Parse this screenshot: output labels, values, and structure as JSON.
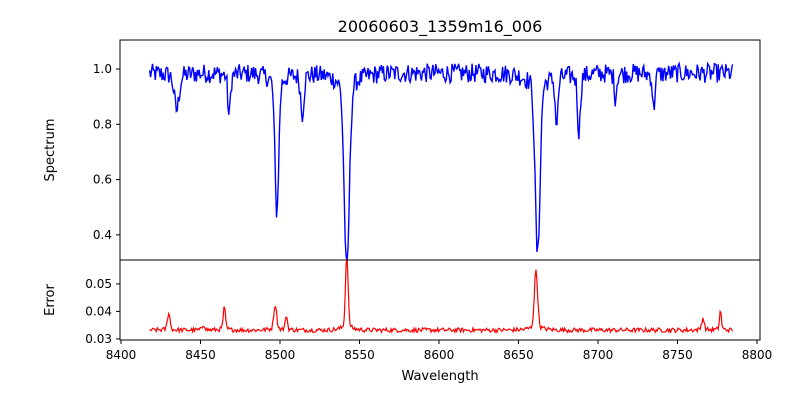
{
  "chart_data": [
    {
      "type": "line",
      "title": "20060603_1359m16_006",
      "ylabel": "Spectrum",
      "xlabel": "",
      "xlim": [
        8400,
        8805
      ],
      "ylim": [
        0.309,
        1.105
      ],
      "yticks": [
        0.4,
        0.6,
        0.8,
        1.0
      ],
      "ytick_labels": [
        "0.4",
        "0.6",
        "0.8",
        "1.0"
      ],
      "color": "#0000ff",
      "x_range": [
        8418,
        8785
      ],
      "step": 0.6,
      "continuum": 0.985,
      "noise_amplitude": 0.035,
      "features": [
        {
          "center": 8435,
          "depth": 0.12,
          "width": 1.5
        },
        {
          "center": 8468,
          "depth": 0.14,
          "width": 0.8
        },
        {
          "center": 8498,
          "depth": 0.45,
          "width": 1.2
        },
        {
          "center": 8514,
          "depth": 0.13,
          "width": 1.0
        },
        {
          "center": 8542,
          "depth": 0.64,
          "width": 1.6
        },
        {
          "center": 8662,
          "depth": 0.59,
          "width": 1.5
        },
        {
          "center": 8674,
          "depth": 0.16,
          "width": 0.9
        },
        {
          "center": 8688,
          "depth": 0.19,
          "width": 0.9
        },
        {
          "center": 8711,
          "depth": 0.08,
          "width": 0.7
        },
        {
          "center": 8735,
          "depth": 0.12,
          "width": 0.7
        }
      ]
    },
    {
      "type": "line",
      "title": "",
      "ylabel": "Error",
      "xlabel": "Wavelength",
      "xlim": [
        8400,
        8805
      ],
      "ylim": [
        0.0296,
        0.0587
      ],
      "yticks": [
        0.03,
        0.04,
        0.05
      ],
      "ytick_labels": [
        "0.03",
        "0.04",
        "0.05"
      ],
      "xticks": [
        8400,
        8450,
        8500,
        8550,
        8600,
        8650,
        8700,
        8750,
        8800
      ],
      "xtick_labels": [
        "8400",
        "8450",
        "8500",
        "8550",
        "8600",
        "8650",
        "8700",
        "8750",
        "8800"
      ],
      "color": "#ff0000",
      "x_range": [
        8418,
        8785
      ],
      "step": 0.6,
      "baseline": 0.0332,
      "noise_amplitude": 0.0008,
      "features": [
        {
          "center": 8430,
          "height": 0.0058,
          "width": 0.8
        },
        {
          "center": 8452,
          "height": 0.0018,
          "width": 0.8
        },
        {
          "center": 8465,
          "height": 0.0075,
          "width": 0.7
        },
        {
          "center": 8497,
          "height": 0.0085,
          "width": 0.9
        },
        {
          "center": 8504,
          "height": 0.005,
          "width": 0.6
        },
        {
          "center": 8542,
          "height": 0.025,
          "width": 0.8
        },
        {
          "center": 8661,
          "height": 0.02,
          "width": 1.0
        },
        {
          "center": 8766,
          "height": 0.004,
          "width": 0.8
        },
        {
          "center": 8777,
          "height": 0.0065,
          "width": 0.6
        }
      ]
    }
  ]
}
